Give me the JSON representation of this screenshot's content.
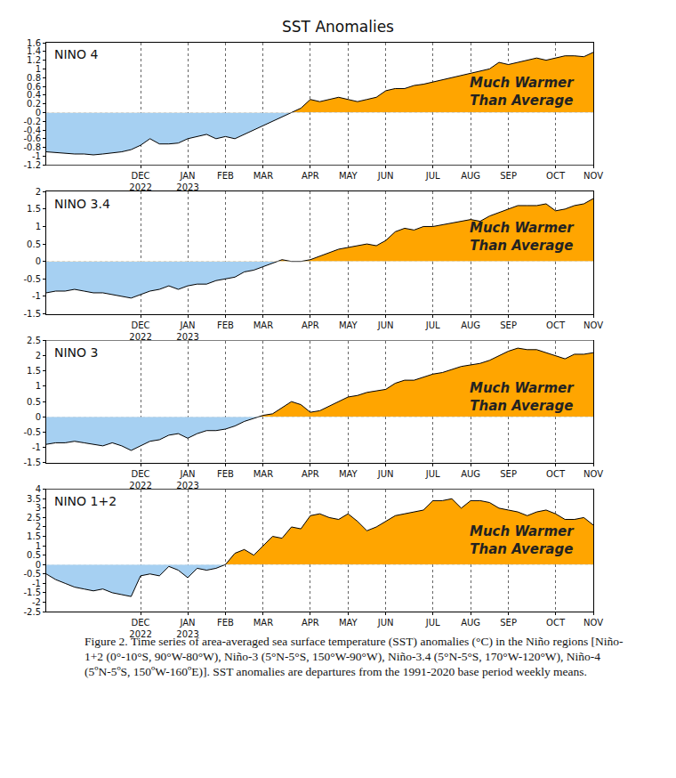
{
  "title": "SST Anomalies",
  "caption": "Figure 2. Time series of area-averaged sea surface temperature (SST) anomalies (°C) in the Niño regions [Niño-1+2 (0°-10°S, 90°W-80°W), Niño-3 (5°N-5°S, 150°W-90°W), Niño-3.4 (5°N-5°S, 170°W-120°W), Niño-4 (5ºN-5ºS, 150ºW-160ºE)]. SST anomalies are departures from the 1991-2020 base period weekly means.",
  "chart_data": [
    {
      "type": "area",
      "title": "NINO 4",
      "color": "#ffa500",
      "grid": true,
      "annotations": [
        "Much Warmer",
        "Than Average"
      ],
      "categories": [
        null,
        null,
        null,
        null,
        null,
        null,
        null,
        null,
        null,
        null,
        "DEC 2022",
        null,
        null,
        null,
        null,
        "JAN 2023",
        null,
        null,
        null,
        "FEB",
        null,
        null,
        null,
        "MAR",
        null,
        null,
        null,
        null,
        "APR",
        null,
        null,
        null,
        "MAY",
        null,
        null,
        null,
        "JUN",
        null,
        null,
        null,
        null,
        "JUL",
        null,
        null,
        null,
        "AUG",
        null,
        null,
        null,
        "SEP",
        null,
        null,
        null,
        null,
        "OCT",
        null,
        null,
        null,
        "NOV"
      ],
      "values": [
        -0.9,
        -0.92,
        -0.93,
        -0.95,
        -0.95,
        -0.97,
        -0.95,
        -0.93,
        -0.9,
        -0.85,
        -0.75,
        -0.6,
        -0.72,
        -0.72,
        -0.7,
        -0.6,
        -0.55,
        -0.5,
        -0.6,
        -0.55,
        -0.6,
        -0.5,
        -0.4,
        -0.3,
        -0.2,
        -0.1,
        0,
        0.1,
        0.3,
        0.25,
        0.3,
        0.35,
        0.3,
        0.25,
        0.3,
        0.35,
        0.5,
        0.55,
        0.55,
        0.62,
        0.65,
        0.7,
        0.75,
        0.8,
        0.85,
        0.9,
        0.95,
        1.0,
        1.15,
        1.1,
        1.15,
        1.2,
        1.25,
        1.2,
        1.25,
        1.3,
        1.3,
        1.28,
        1.38
      ],
      "ylim": [
        -1.2,
        1.6
      ],
      "yticks": [
        -1.2,
        -1,
        -0.8,
        -0.6,
        -0.4,
        -0.2,
        0,
        0.2,
        0.4,
        0.6,
        0.8,
        1,
        1.2,
        1.4,
        1.6
      ]
    },
    {
      "type": "area",
      "title": "NINO 3.4",
      "color": "#ffa500",
      "grid": true,
      "annotations": [
        "Much Warmer",
        "Than Average"
      ],
      "categories": [
        null,
        null,
        null,
        null,
        null,
        null,
        null,
        null,
        null,
        null,
        "DEC 2022",
        null,
        null,
        null,
        null,
        "JAN 2023",
        null,
        null,
        null,
        "FEB",
        null,
        null,
        null,
        "MAR",
        null,
        null,
        null,
        null,
        "APR",
        null,
        null,
        null,
        "MAY",
        null,
        null,
        null,
        "JUN",
        null,
        null,
        null,
        null,
        "JUL",
        null,
        null,
        null,
        "AUG",
        null,
        null,
        null,
        "SEP",
        null,
        null,
        null,
        null,
        "OCT",
        null,
        null,
        null,
        "NOV"
      ],
      "values": [
        -0.9,
        -0.85,
        -0.85,
        -0.8,
        -0.85,
        -0.9,
        -0.9,
        -0.95,
        -1.0,
        -1.05,
        -0.95,
        -0.85,
        -0.8,
        -0.7,
        -0.8,
        -0.7,
        -0.65,
        -0.65,
        -0.55,
        -0.5,
        -0.45,
        -0.3,
        -0.25,
        -0.15,
        -0.05,
        0.05,
        0,
        0,
        0.05,
        0.15,
        0.25,
        0.35,
        0.4,
        0.45,
        0.5,
        0.45,
        0.6,
        0.85,
        0.95,
        0.9,
        1.0,
        1.0,
        1.05,
        1.1,
        1.15,
        1.2,
        1.15,
        1.3,
        1.4,
        1.5,
        1.6,
        1.6,
        1.6,
        1.65,
        1.45,
        1.5,
        1.6,
        1.65,
        1.8
      ],
      "ylim": [
        -1.5,
        2
      ],
      "yticks": [
        -1.5,
        -1,
        -0.5,
        0,
        0.5,
        1,
        1.5,
        2
      ]
    },
    {
      "type": "area",
      "title": "NINO 3",
      "color": "#ffa500",
      "grid": true,
      "annotations": [
        "Much Warmer",
        "Than Average"
      ],
      "categories": [
        null,
        null,
        null,
        null,
        null,
        null,
        null,
        null,
        null,
        null,
        "DEC 2022",
        null,
        null,
        null,
        null,
        "JAN 2023",
        null,
        null,
        null,
        "FEB",
        null,
        null,
        null,
        "MAR",
        null,
        null,
        null,
        null,
        "APR",
        null,
        null,
        null,
        "MAY",
        null,
        null,
        null,
        "JUN",
        null,
        null,
        null,
        null,
        "JUL",
        null,
        null,
        null,
        "AUG",
        null,
        null,
        null,
        "SEP",
        null,
        null,
        null,
        null,
        "OCT",
        null,
        null,
        null,
        "NOV"
      ],
      "values": [
        -0.9,
        -0.85,
        -0.85,
        -0.8,
        -0.85,
        -0.9,
        -0.95,
        -0.85,
        -0.95,
        -1.1,
        -0.95,
        -0.8,
        -0.75,
        -0.6,
        -0.55,
        -0.7,
        -0.55,
        -0.45,
        -0.45,
        -0.4,
        -0.3,
        -0.15,
        -0.05,
        0.05,
        0.1,
        0.3,
        0.5,
        0.4,
        0.15,
        0.2,
        0.35,
        0.5,
        0.65,
        0.7,
        0.8,
        0.85,
        0.9,
        1.1,
        1.2,
        1.2,
        1.3,
        1.4,
        1.45,
        1.55,
        1.65,
        1.7,
        1.75,
        1.85,
        2.0,
        2.15,
        2.25,
        2.2,
        2.2,
        2.1,
        2.0,
        1.9,
        2.05,
        2.05,
        2.1
      ],
      "ylim": [
        -1.5,
        2.5
      ],
      "yticks": [
        -1.5,
        -1,
        -0.5,
        0,
        0.5,
        1,
        1.5,
        2,
        2.5
      ]
    },
    {
      "type": "area",
      "title": "NINO 1+2",
      "color": "#ffa500",
      "grid": true,
      "annotations": [
        "Much Warmer",
        "Than Average"
      ],
      "categories": [
        null,
        null,
        null,
        null,
        null,
        null,
        null,
        null,
        null,
        null,
        "DEC 2022",
        null,
        null,
        null,
        null,
        "JAN 2023",
        null,
        null,
        null,
        "FEB",
        null,
        null,
        null,
        "MAR",
        null,
        null,
        null,
        null,
        "APR",
        null,
        null,
        null,
        "MAY",
        null,
        null,
        null,
        "JUN",
        null,
        null,
        null,
        null,
        "JUL",
        null,
        null,
        null,
        "AUG",
        null,
        null,
        null,
        "SEP",
        null,
        null,
        null,
        null,
        "OCT",
        null,
        null,
        null,
        "NOV"
      ],
      "values": [
        -0.5,
        -0.8,
        -1.0,
        -1.2,
        -1.3,
        -1.4,
        -1.3,
        -1.5,
        -1.6,
        -1.7,
        -0.6,
        -0.5,
        -0.6,
        -0.1,
        -0.3,
        -0.7,
        -0.2,
        -0.3,
        -0.2,
        0,
        0.6,
        0.8,
        0.5,
        1.0,
        1.5,
        1.4,
        2.0,
        1.9,
        2.6,
        2.7,
        2.5,
        2.4,
        2.7,
        2.3,
        1.8,
        2.0,
        2.3,
        2.6,
        2.7,
        2.8,
        2.9,
        3.4,
        3.4,
        3.5,
        3.0,
        3.4,
        3.4,
        3.3,
        3.0,
        2.9,
        2.8,
        2.6,
        2.8,
        2.9,
        2.7,
        2.4,
        2.4,
        2.5,
        2.1
      ],
      "ylim": [
        -2.5,
        4
      ],
      "yticks": [
        -2.5,
        -2,
        -1.5,
        -1,
        -0.5,
        0,
        0.5,
        1,
        1.5,
        2,
        2.5,
        3,
        3.5,
        4
      ]
    }
  ]
}
